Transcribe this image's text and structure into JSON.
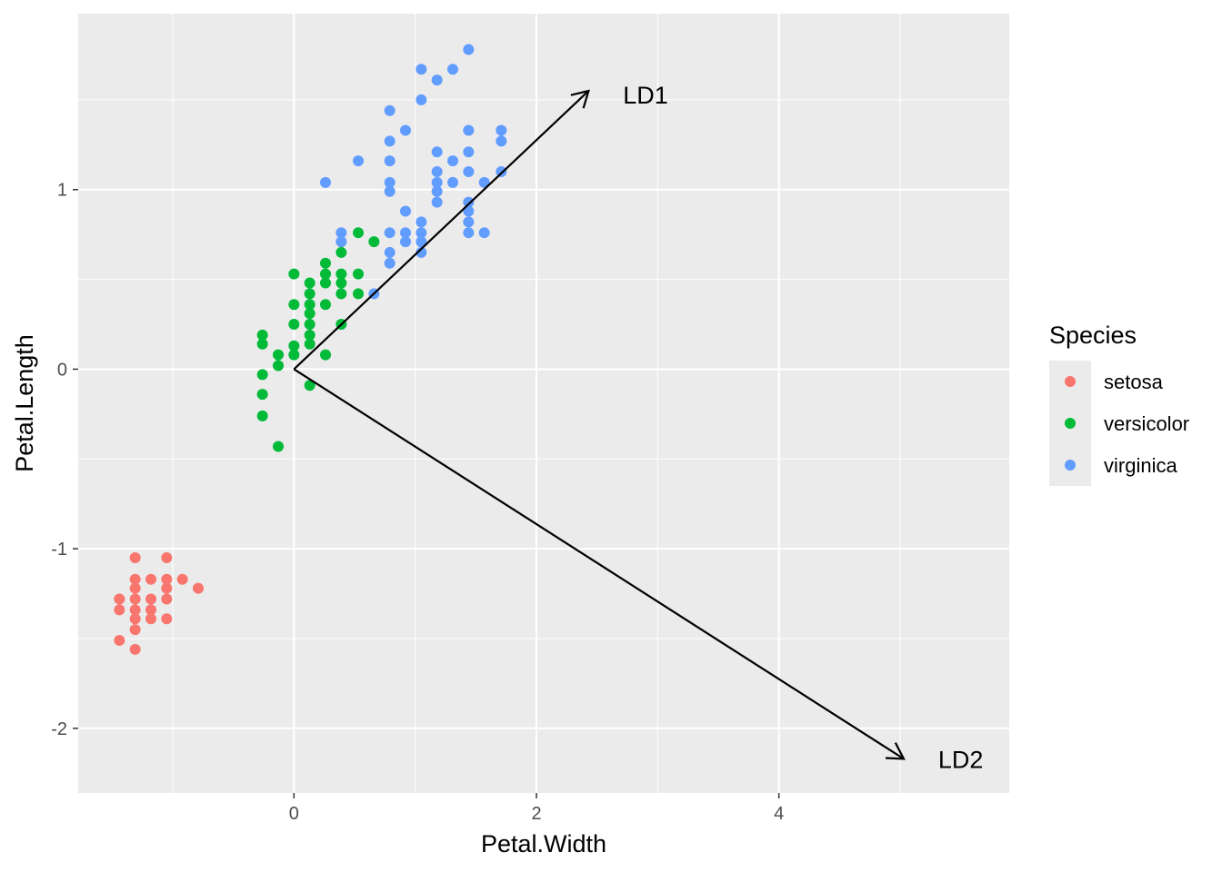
{
  "chart_data": {
    "type": "scatter",
    "xlabel": "Petal.Width",
    "ylabel": "Petal.Length",
    "xlim": [
      -1.78,
      5.9
    ],
    "ylim": [
      -2.36,
      1.98
    ],
    "x_ticks": [
      0,
      2,
      4
    ],
    "y_ticks": [
      -2,
      -1,
      0,
      1
    ],
    "x_tick_labels": [
      "0",
      "2",
      "4"
    ],
    "y_tick_labels": [
      "-2",
      "-1",
      "0",
      "1"
    ],
    "grid": true,
    "legend": {
      "title": "Species",
      "position": "right",
      "entries": [
        "setosa",
        "versicolor",
        "virginica"
      ]
    },
    "colors": {
      "setosa": "#F8766D",
      "versicolor": "#00BA38",
      "virginica": "#619CFF",
      "panel": "#EBEBEB",
      "grid": "#FFFFFF",
      "arrow": "#000000"
    },
    "series": [
      {
        "name": "setosa",
        "points": [
          [
            -1.31,
            -1.05
          ],
          [
            -1.05,
            -1.05
          ],
          [
            -1.31,
            -1.17
          ],
          [
            -1.18,
            -1.17
          ],
          [
            -1.05,
            -1.17
          ],
          [
            -0.92,
            -1.17
          ],
          [
            -1.31,
            -1.22
          ],
          [
            -1.05,
            -1.22
          ],
          [
            -0.79,
            -1.22
          ],
          [
            -1.44,
            -1.28
          ],
          [
            -1.31,
            -1.28
          ],
          [
            -1.18,
            -1.28
          ],
          [
            -1.05,
            -1.28
          ],
          [
            -1.44,
            -1.34
          ],
          [
            -1.31,
            -1.34
          ],
          [
            -1.18,
            -1.34
          ],
          [
            -1.31,
            -1.39
          ],
          [
            -1.18,
            -1.39
          ],
          [
            -1.05,
            -1.39
          ],
          [
            -1.31,
            -1.45
          ],
          [
            -1.44,
            -1.51
          ],
          [
            -1.31,
            -1.56
          ]
        ]
      },
      {
        "name": "versicolor",
        "points": [
          [
            -0.26,
            0.19
          ],
          [
            -0.26,
            0.14
          ],
          [
            -0.26,
            -0.03
          ],
          [
            -0.26,
            -0.14
          ],
          [
            -0.26,
            -0.26
          ],
          [
            -0.13,
            0.08
          ],
          [
            -0.13,
            0.02
          ],
          [
            -0.13,
            -0.43
          ],
          [
            0.0,
            0.53
          ],
          [
            0.0,
            0.36
          ],
          [
            0.0,
            0.25
          ],
          [
            0.0,
            0.13
          ],
          [
            0.0,
            0.08
          ],
          [
            0.13,
            0.48
          ],
          [
            0.13,
            0.42
          ],
          [
            0.13,
            0.36
          ],
          [
            0.13,
            0.31
          ],
          [
            0.13,
            0.25
          ],
          [
            0.13,
            0.19
          ],
          [
            0.13,
            0.14
          ],
          [
            0.13,
            -0.09
          ],
          [
            0.26,
            0.59
          ],
          [
            0.26,
            0.53
          ],
          [
            0.26,
            0.48
          ],
          [
            0.26,
            0.36
          ],
          [
            0.26,
            0.08
          ],
          [
            0.39,
            0.65
          ],
          [
            0.39,
            0.53
          ],
          [
            0.39,
            0.48
          ],
          [
            0.39,
            0.42
          ],
          [
            0.39,
            0.25
          ],
          [
            0.53,
            0.76
          ],
          [
            0.53,
            0.53
          ],
          [
            0.53,
            0.42
          ],
          [
            0.66,
            0.71
          ]
        ]
      },
      {
        "name": "virginica",
        "points": [
          [
            0.26,
            1.04
          ],
          [
            0.39,
            0.76
          ],
          [
            0.39,
            0.71
          ],
          [
            0.53,
            1.16
          ],
          [
            0.66,
            0.42
          ],
          [
            0.79,
            1.44
          ],
          [
            0.79,
            1.27
          ],
          [
            0.79,
            1.16
          ],
          [
            0.79,
            1.04
          ],
          [
            0.79,
            0.99
          ],
          [
            0.79,
            0.76
          ],
          [
            0.79,
            0.65
          ],
          [
            0.79,
            0.59
          ],
          [
            0.92,
            1.33
          ],
          [
            0.92,
            0.88
          ],
          [
            0.92,
            0.76
          ],
          [
            0.92,
            0.71
          ],
          [
            1.05,
            1.67
          ],
          [
            1.05,
            1.5
          ],
          [
            1.05,
            0.82
          ],
          [
            1.05,
            0.76
          ],
          [
            1.05,
            0.71
          ],
          [
            1.05,
            0.65
          ],
          [
            1.18,
            1.61
          ],
          [
            1.18,
            1.21
          ],
          [
            1.18,
            1.1
          ],
          [
            1.18,
            1.04
          ],
          [
            1.18,
            0.99
          ],
          [
            1.18,
            0.93
          ],
          [
            1.31,
            1.67
          ],
          [
            1.31,
            1.16
          ],
          [
            1.31,
            1.04
          ],
          [
            1.44,
            1.78
          ],
          [
            1.44,
            1.33
          ],
          [
            1.44,
            1.21
          ],
          [
            1.44,
            1.1
          ],
          [
            1.44,
            0.93
          ],
          [
            1.44,
            0.88
          ],
          [
            1.44,
            0.82
          ],
          [
            1.44,
            0.76
          ],
          [
            1.57,
            1.04
          ],
          [
            1.57,
            0.76
          ],
          [
            1.71,
            1.33
          ],
          [
            1.71,
            1.27
          ],
          [
            1.71,
            1.1
          ]
        ]
      }
    ],
    "arrows": [
      {
        "label": "LD1",
        "x0": 0,
        "y0": 0,
        "x1": 2.43,
        "y1": 1.55,
        "label_x": 2.9,
        "label_y": 1.53
      },
      {
        "label": "LD2",
        "x0": 0,
        "y0": 0,
        "x1": 5.03,
        "y1": -2.17,
        "label_x": 5.5,
        "label_y": -2.17
      }
    ]
  }
}
